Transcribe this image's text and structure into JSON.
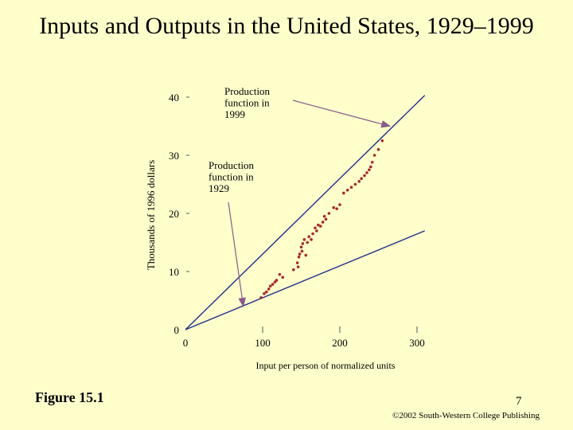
{
  "slide": {
    "title": "Inputs and Outputs in the United States, 1929–1999",
    "figure_label": "Figure 15.1",
    "page_number": "7",
    "copyright": "©2002 South-Western College Publishing"
  },
  "colors": {
    "background": "#ffffcc",
    "line": "#1f2f8a",
    "points": "#a52a2a",
    "annotation_arrow": "#8a5a8a",
    "axis": "#555555"
  },
  "chart_data": {
    "type": "scatter",
    "xlabel": "Input per person of normalized units",
    "ylabel": "Thousands of 1996 dollars",
    "xlim": [
      0,
      310
    ],
    "ylim": [
      0,
      42
    ],
    "xticks": [
      0,
      100,
      200,
      300
    ],
    "yticks": [
      0,
      10,
      20,
      30,
      40
    ],
    "grid": false,
    "lines": [
      {
        "label": "Production function in 1999",
        "x": [
          0,
          310
        ],
        "y": [
          0,
          40.3
        ]
      },
      {
        "label": "Production function in 1929",
        "x": [
          0,
          310
        ],
        "y": [
          0,
          17
        ]
      }
    ],
    "annotations": [
      {
        "text": "Production function in 1999",
        "target": [
          265,
          35
        ]
      },
      {
        "text": "Production function in 1929",
        "target": [
          75,
          4
        ]
      }
    ],
    "points": {
      "x": [
        98,
        102,
        105,
        108,
        110,
        113,
        116,
        118,
        122,
        126,
        140,
        145,
        146,
        147,
        148,
        150,
        151,
        152,
        154,
        156,
        158,
        160,
        163,
        165,
        168,
        170,
        172,
        175,
        178,
        180,
        182,
        186,
        192,
        196,
        200,
        205,
        210,
        215,
        220,
        225,
        228,
        232,
        235,
        238,
        240,
        242,
        245,
        250,
        255
      ],
      "y": [
        5.5,
        6.2,
        6.5,
        7.0,
        7.5,
        7.8,
        8.2,
        8.5,
        9.5,
        9.0,
        10.3,
        11.5,
        10.8,
        12.5,
        13.0,
        14.2,
        13.5,
        14.8,
        15.5,
        12.8,
        15.0,
        16.0,
        15.5,
        16.5,
        17.5,
        17.0,
        18.0,
        17.8,
        18.5,
        19.5,
        19.0,
        20.0,
        21.0,
        20.8,
        21.5,
        23.5,
        24.0,
        24.5,
        25.0,
        25.5,
        26.0,
        26.5,
        27.0,
        27.5,
        28.0,
        28.8,
        30.0,
        31.0,
        32.5
      ]
    }
  }
}
